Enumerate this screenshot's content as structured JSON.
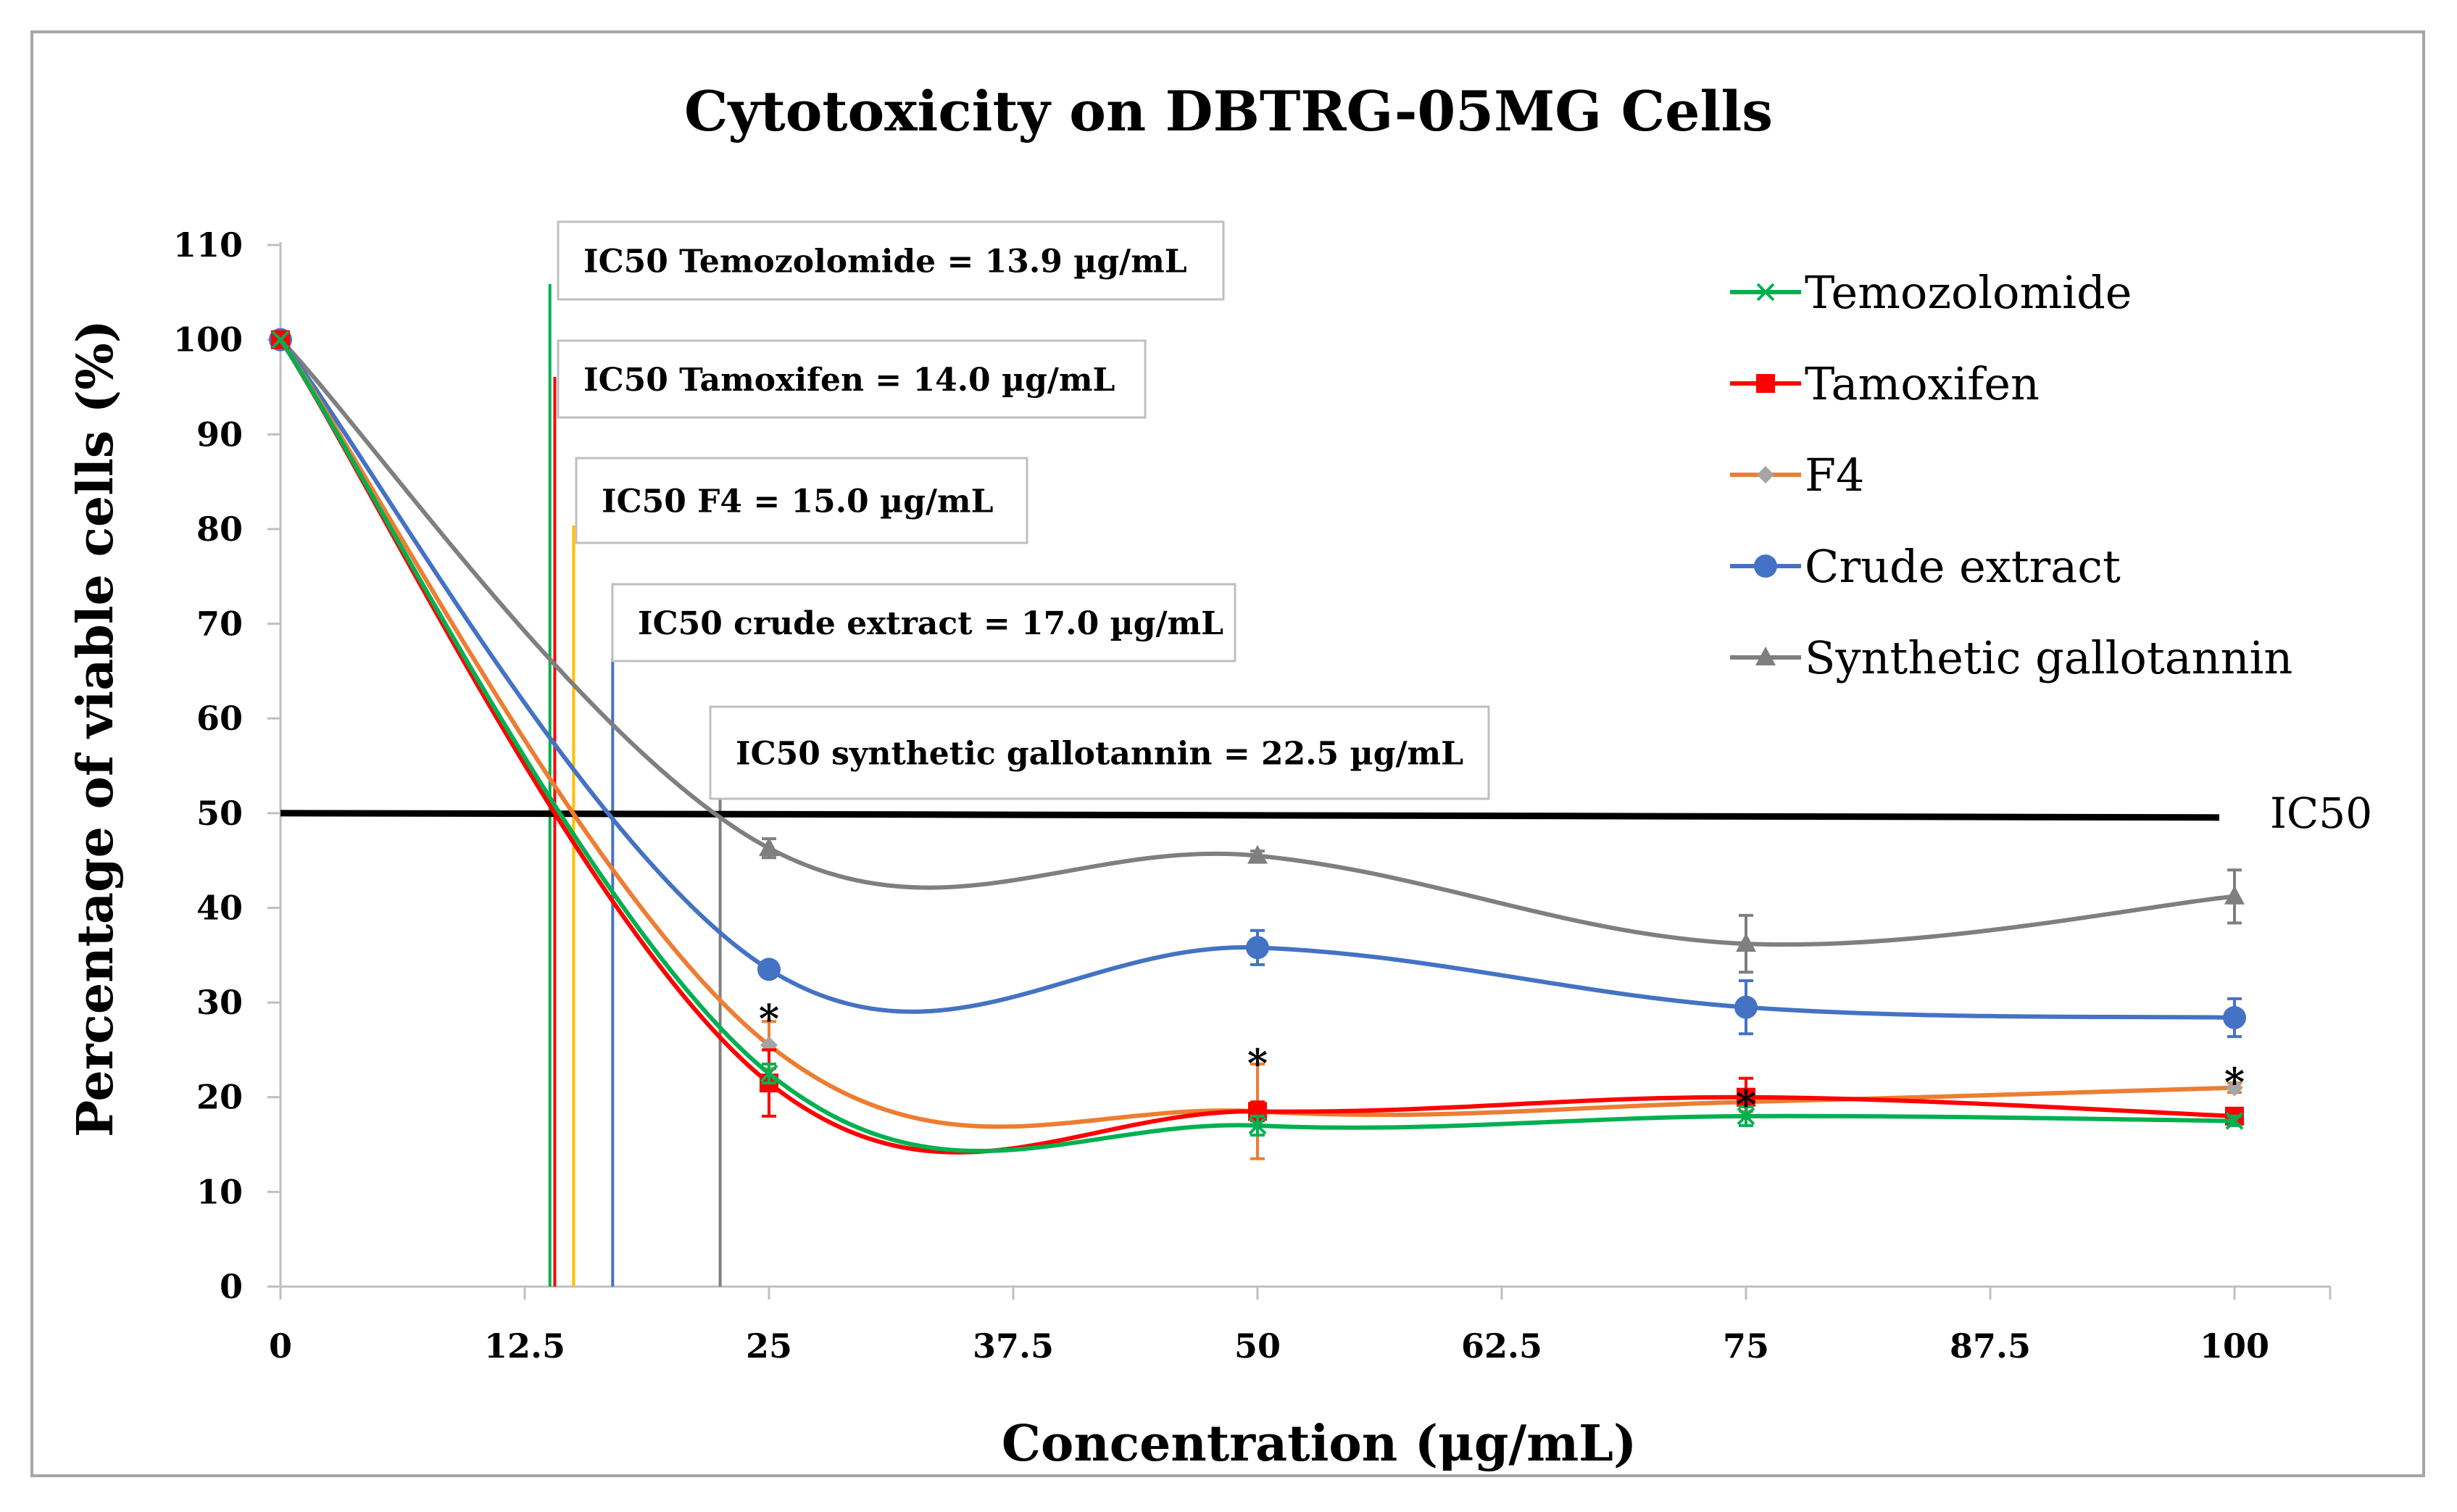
{
  "chart_data": {
    "type": "line",
    "title": "Cytotoxicity on DBTRG-05MG Cells",
    "xlabel": "Concentration (μg/mL)",
    "ylabel": "Percentage of viable cells (%)",
    "xlim": [
      0,
      105
    ],
    "ylim": [
      0,
      110
    ],
    "x_ticks": [
      "0",
      "12.5",
      "25",
      "37.5",
      "50",
      "62.5",
      "75",
      "87.5",
      "100"
    ],
    "x_tick_values": [
      0,
      12.5,
      25,
      37.5,
      50,
      62.5,
      75,
      87.5,
      100
    ],
    "y_ticks": [
      "0",
      "10",
      "20",
      "30",
      "40",
      "50",
      "60",
      "70",
      "80",
      "90",
      "100",
      "110"
    ],
    "y_tick_values": [
      0,
      10,
      20,
      30,
      40,
      50,
      60,
      70,
      80,
      90,
      100,
      110
    ],
    "x": [
      0,
      25,
      50,
      75,
      100
    ],
    "series": [
      {
        "name": "Temozolomide",
        "color": "#00b050",
        "marker": "x",
        "values": [
          100,
          22.5,
          17,
          18,
          17.5
        ],
        "errors": [
          0,
          1.0,
          1.0,
          1.0,
          0.5
        ]
      },
      {
        "name": "Tamoxifen",
        "color": "#ff0000",
        "marker": "square",
        "values": [
          100,
          21.5,
          18.5,
          20,
          18
        ],
        "errors": [
          0,
          3.5,
          1.0,
          2.0,
          0.5
        ]
      },
      {
        "name": "F4",
        "color": "#ed7d31",
        "marker": "diamond",
        "values": [
          100,
          25.5,
          18.5,
          19.5,
          21
        ],
        "errors": [
          0,
          2.5,
          5.0,
          1.0,
          0.5
        ]
      },
      {
        "name": "Crude extract",
        "color": "#4472c4",
        "marker": "circle",
        "values": [
          100,
          33.5,
          35.8,
          29.5,
          28.4
        ],
        "errors": [
          0,
          0.8,
          1.8,
          2.8,
          2.0
        ]
      },
      {
        "name": "Synthetic gallotannin",
        "color": "#7f7f7f",
        "marker": "triangle",
        "values": [
          100,
          46.3,
          45.5,
          36.2,
          41.2
        ],
        "errors": [
          0,
          1.0,
          0.5,
          3.0,
          2.8
        ]
      }
    ],
    "ic50_line": {
      "value": 50,
      "label": "IC50"
    },
    "ic50_markers": [
      {
        "label": "IC50 Temozolomide = 13.9 µg/mL",
        "x": 13.9,
        "color": "#00b050"
      },
      {
        "label": "IC50 Tamoxifen = 14.0 µg/mL",
        "x": 14.0,
        "color": "#ff0000"
      },
      {
        "label": "IC50 F4 = 15.0 µg/mL",
        "x": 15.0,
        "color": "#ffc000"
      },
      {
        "label": "IC50 crude extract = 17.0 µg/mL",
        "x": 17.0,
        "color": "#4472c4"
      },
      {
        "label": "IC50 synthetic gallotannin = 22.5 µg/mL",
        "x": 22.5,
        "color": "#7f7f7f"
      }
    ],
    "significance": [
      {
        "x": 25,
        "label": "*"
      },
      {
        "x": 50,
        "label": "*"
      },
      {
        "x": 75,
        "label": "*"
      },
      {
        "x": 100,
        "label": "*"
      }
    ],
    "legend_position": "top-right"
  }
}
